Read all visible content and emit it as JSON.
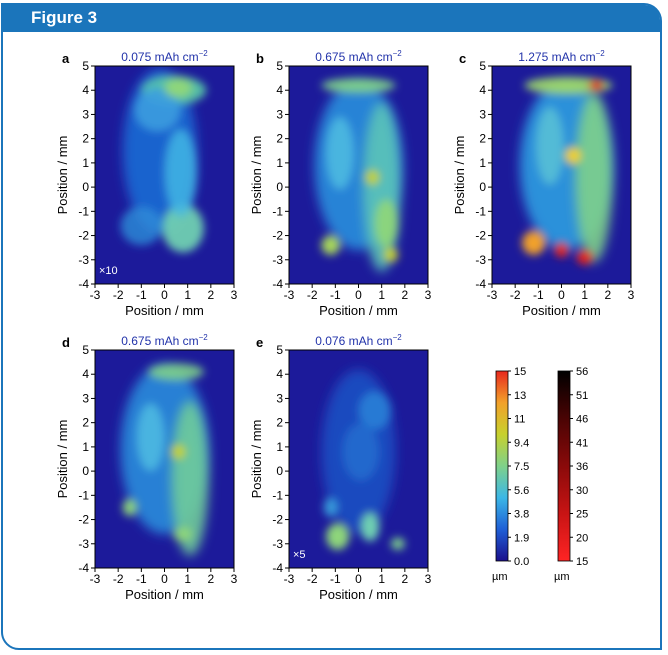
{
  "figure": {
    "title": "Figure 3",
    "colors": {
      "header": "#1b75bb",
      "panel_title": "#2233aa"
    }
  },
  "panels": [
    {
      "letter": "a",
      "title": "0.075 mAh cm",
      "title_sup": "−2",
      "scale_note": "×10",
      "xlabel": "Position / mm",
      "ylabel": "Position / mm",
      "x_ticks": [
        "-3",
        "-2",
        "-1",
        "0",
        "1",
        "2",
        "3"
      ],
      "y_ticks": [
        "-4",
        "-3",
        "-2",
        "-1",
        "0",
        "1",
        "2",
        "3",
        "4",
        "5"
      ]
    },
    {
      "letter": "b",
      "title": "0.675 mAh cm",
      "title_sup": "−2",
      "scale_note": "",
      "xlabel": "Position / mm",
      "ylabel": "Position / mm",
      "x_ticks": [
        "-3",
        "-2",
        "-1",
        "0",
        "1",
        "2",
        "3"
      ],
      "y_ticks": [
        "-4",
        "-3",
        "-2",
        "-1",
        "0",
        "1",
        "2",
        "3",
        "4",
        "5"
      ]
    },
    {
      "letter": "c",
      "title": "1.275 mAh cm",
      "title_sup": "−2",
      "scale_note": "",
      "xlabel": "Position / mm",
      "ylabel": "Position / mm",
      "x_ticks": [
        "-3",
        "-2",
        "-1",
        "0",
        "1",
        "2",
        "3"
      ],
      "y_ticks": [
        "-4",
        "-3",
        "-2",
        "-1",
        "0",
        "1",
        "2",
        "3",
        "4",
        "5"
      ]
    },
    {
      "letter": "d",
      "title": "0.675 mAh cm",
      "title_sup": "−2",
      "scale_note": "",
      "xlabel": "Position / mm",
      "ylabel": "Position / mm",
      "x_ticks": [
        "-3",
        "-2",
        "-1",
        "0",
        "1",
        "2",
        "3"
      ],
      "y_ticks": [
        "-4",
        "-3",
        "-2",
        "-1",
        "0",
        "1",
        "2",
        "3",
        "4",
        "5"
      ]
    },
    {
      "letter": "e",
      "title": "0.076 mAh cm",
      "title_sup": "−2",
      "scale_note": "×5",
      "xlabel": "Position / mm",
      "ylabel": "Position / mm",
      "x_ticks": [
        "-3",
        "-2",
        "-1",
        "0",
        "1",
        "2",
        "3"
      ],
      "y_ticks": [
        "-4",
        "-3",
        "-2",
        "-1",
        "0",
        "1",
        "2",
        "3",
        "4",
        "5"
      ]
    }
  ],
  "colorbars": [
    {
      "unit": "µm",
      "ticks": [
        "15",
        "13",
        "11",
        "9.4",
        "7.5",
        "5.6",
        "3.8",
        "1.9",
        "0.0"
      ],
      "stops": [
        "#1a0f8c",
        "#1f5fd6",
        "#3cb7e6",
        "#7fd18a",
        "#c7d12e",
        "#f2a12a",
        "#e8281e"
      ]
    },
    {
      "unit": "µm",
      "ticks": [
        "56",
        "51",
        "46",
        "41",
        "36",
        "30",
        "25",
        "20",
        "15"
      ],
      "stops": [
        "#ff2424",
        "#c81414",
        "#8a0a0a",
        "#4a0404",
        "#000000"
      ]
    }
  ]
}
